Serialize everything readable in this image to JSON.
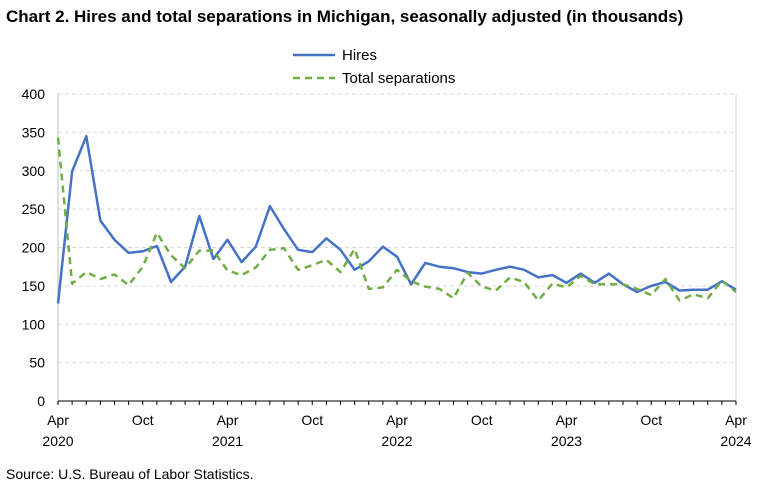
{
  "chart_data": {
    "type": "line",
    "title": "Chart 2. Hires and total separations in Michigan, seasonally adjusted (in thousands)",
    "source": "Source: U.S. Bureau of Labor Statistics.",
    "xlabel": "",
    "ylabel": "",
    "ylim": [
      0,
      400
    ],
    "yticks": [
      0,
      50,
      100,
      150,
      200,
      250,
      300,
      350,
      400
    ],
    "grid": true,
    "legend": "top-center",
    "x_ticks": [
      {
        "index": 0,
        "month": "Apr",
        "year": "2020"
      },
      {
        "index": 6,
        "month": "Oct",
        "year": ""
      },
      {
        "index": 12,
        "month": "Apr",
        "year": "2021"
      },
      {
        "index": 18,
        "month": "Oct",
        "year": ""
      },
      {
        "index": 24,
        "month": "Apr",
        "year": "2022"
      },
      {
        "index": 30,
        "month": "Oct",
        "year": ""
      },
      {
        "index": 36,
        "month": "Apr",
        "year": "2023"
      },
      {
        "index": 42,
        "month": "Oct",
        "year": ""
      },
      {
        "index": 48,
        "month": "Apr",
        "year": "2024"
      }
    ],
    "series": [
      {
        "name": "Hires",
        "color": "#4472c4",
        "dash": "solid",
        "values": [
          127,
          299,
          345,
          235,
          210,
          193,
          195,
          202,
          155,
          175,
          241,
          185,
          210,
          181,
          201,
          254,
          224,
          197,
          194,
          212,
          197,
          171,
          182,
          201,
          188,
          152,
          180,
          175,
          173,
          168,
          166,
          171,
          175,
          171,
          161,
          164,
          154,
          166,
          154,
          166,
          152,
          142,
          150,
          155,
          144,
          145,
          145,
          156,
          145
        ]
      },
      {
        "name": "Total separations",
        "color": "#70ad47",
        "dash": "dashed",
        "values": [
          343,
          153,
          168,
          159,
          165,
          151,
          175,
          219,
          190,
          173,
          196,
          196,
          170,
          164,
          174,
          197,
          199,
          171,
          177,
          184,
          168,
          198,
          146,
          148,
          171,
          156,
          149,
          146,
          134,
          167,
          149,
          144,
          161,
          155,
          131,
          153,
          148,
          163,
          152,
          152,
          152,
          146,
          138,
          159,
          131,
          139,
          134,
          157,
          142
        ]
      }
    ]
  }
}
